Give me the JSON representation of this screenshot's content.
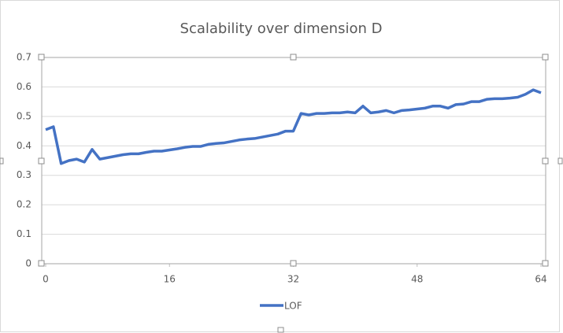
{
  "chart_data": {
    "type": "line",
    "title": "Scalability over dimension D",
    "x": [
      0,
      1,
      2,
      3,
      4,
      5,
      6,
      7,
      8,
      9,
      10,
      11,
      12,
      13,
      14,
      15,
      16,
      17,
      18,
      19,
      20,
      21,
      22,
      23,
      24,
      25,
      26,
      27,
      28,
      29,
      30,
      31,
      32,
      33,
      34,
      35,
      36,
      37,
      38,
      39,
      40,
      41,
      42,
      43,
      44,
      45,
      46,
      47,
      48,
      49,
      50,
      51,
      52,
      53,
      54,
      55,
      56,
      57,
      58,
      59,
      60,
      61,
      62,
      63,
      64
    ],
    "series": [
      {
        "name": "LOF",
        "color": "#4472c4",
        "values": [
          0.455,
          0.465,
          0.34,
          0.35,
          0.355,
          0.345,
          0.388,
          0.355,
          0.36,
          0.365,
          0.37,
          0.373,
          0.373,
          0.378,
          0.382,
          0.382,
          0.386,
          0.39,
          0.395,
          0.398,
          0.398,
          0.405,
          0.408,
          0.41,
          0.415,
          0.42,
          0.423,
          0.425,
          0.43,
          0.435,
          0.44,
          0.45,
          0.45,
          0.51,
          0.505,
          0.51,
          0.51,
          0.512,
          0.512,
          0.515,
          0.512,
          0.535,
          0.512,
          0.515,
          0.52,
          0.512,
          0.52,
          0.522,
          0.525,
          0.528,
          0.535,
          0.535,
          0.528,
          0.54,
          0.542,
          0.55,
          0.55,
          0.558,
          0.56,
          0.56,
          0.562,
          0.565,
          0.575,
          0.59,
          0.58
        ]
      }
    ],
    "xlim": [
      0,
      64
    ],
    "xticks": [
      0,
      16,
      32,
      48,
      64
    ],
    "ylim": [
      0,
      0.7
    ],
    "yticks": [
      0,
      0.1,
      0.2,
      0.3,
      0.4,
      0.5,
      0.6,
      0.7
    ],
    "grid": true,
    "legend": "bottom"
  }
}
